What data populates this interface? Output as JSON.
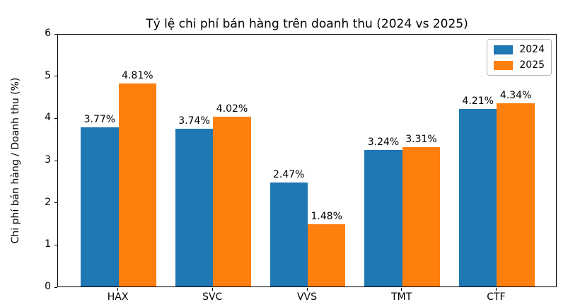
{
  "chart_data": {
    "type": "bar",
    "title": "Tỷ lệ chi phí bán hàng trên doanh thu (2024 vs 2025)",
    "xlabel": "",
    "ylabel": "Chi phí bán hàng / Doanh thu (%)",
    "categories": [
      "HAX",
      "SVC",
      "VVS",
      "TMT",
      "CTF"
    ],
    "series": [
      {
        "name": "2024",
        "color": "#1f77b4",
        "values": [
          3.77,
          3.74,
          2.47,
          3.24,
          4.21
        ],
        "labels": [
          "3.77%",
          "3.74%",
          "2.47%",
          "3.24%",
          "4.21%"
        ]
      },
      {
        "name": "2025",
        "color": "#ff7f0e",
        "values": [
          4.81,
          4.02,
          1.48,
          3.31,
          4.34
        ],
        "labels": [
          "4.81%",
          "4.02%",
          "1.48%",
          "3.31%",
          "4.34%"
        ]
      }
    ],
    "ylim": [
      0,
      6
    ],
    "yticks": [
      0,
      1,
      2,
      3,
      4,
      5,
      6
    ],
    "grid": false,
    "legend_position": "upper right"
  }
}
